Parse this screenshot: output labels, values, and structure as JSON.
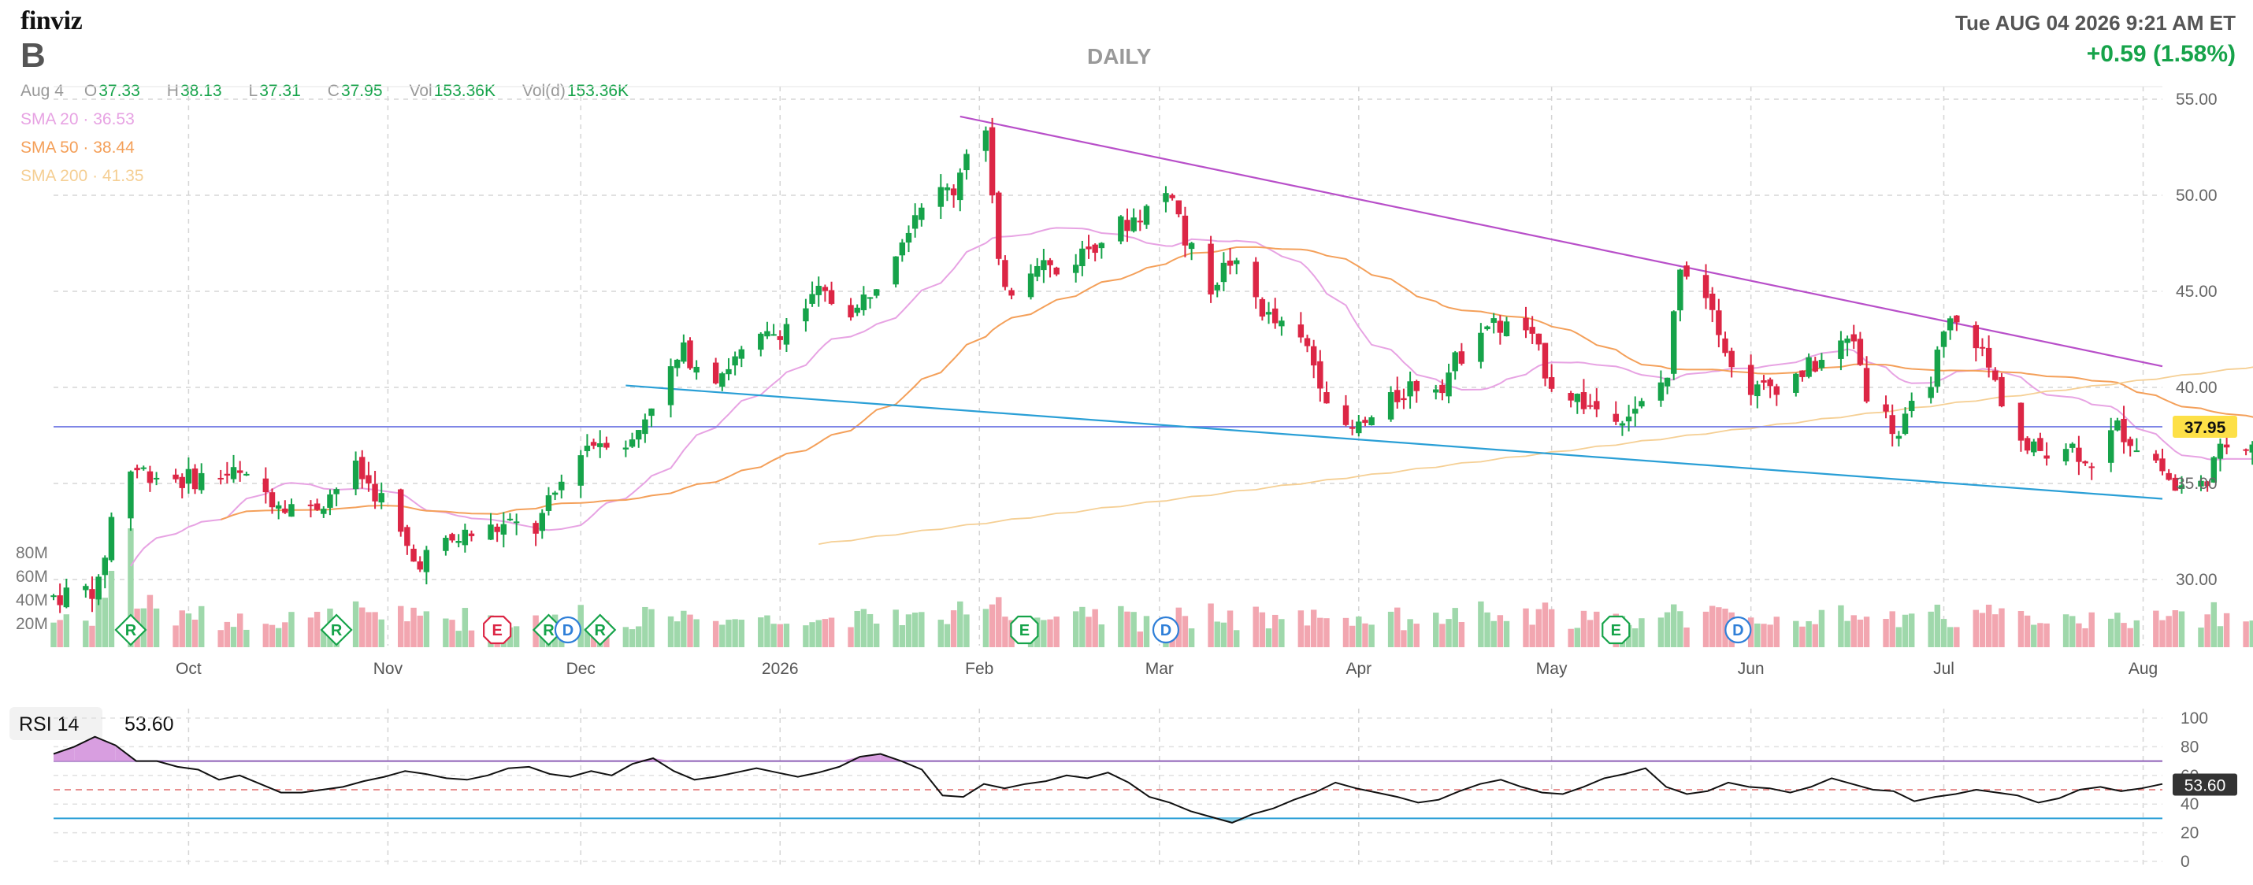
{
  "header": {
    "logo": "finviz",
    "ticker": "B",
    "timeframe": "DAILY",
    "datetime": "Tue AUG 04 2026 9:21 AM ET",
    "change": "+0.59 (1.58%)"
  },
  "ohlc": {
    "date": "Aug 4",
    "open_label": "O",
    "open": "37.33",
    "high_label": "H",
    "high": "38.13",
    "low_label": "L",
    "low": "37.31",
    "close_label": "C",
    "close": "37.95",
    "vol_label": "Vol",
    "vol": "153.36K",
    "vold_label": "Vol(d)",
    "vold": "153.36K"
  },
  "indicators": {
    "sma20": {
      "label": "SMA 20",
      "value": "36.53",
      "color": "#e7a3e3"
    },
    "sma50": {
      "label": "SMA 50",
      "value": "38.44",
      "color": "#f4a05a"
    },
    "sma200": {
      "label": "SMA 200",
      "value": "41.35",
      "color": "#f5cf94"
    }
  },
  "rsi": {
    "label": "RSI 14",
    "value": "53.60"
  },
  "colors": {
    "up": "#16a34a",
    "down": "#dc2645",
    "vol_up": "#9fd8ab",
    "vol_down": "#f2a6b0",
    "trend_upper": "#b84fc9",
    "trend_lower": "#2a9fd6",
    "hline": "#7f86e6",
    "price_tag": "#fde047"
  },
  "chart_data": [
    {
      "type": "candlestick",
      "title": "B DAILY",
      "x_range": [
        "2025-09-10",
        "2026-08-04"
      ],
      "ylim": [
        27,
        56
      ],
      "y_ticks": [
        "55.00",
        "50.00",
        "45.00",
        "40.00",
        "35.00",
        "30.00"
      ],
      "x_ticks": [
        "Oct",
        "Nov",
        "Dec",
        "2026",
        "Feb",
        "Mar",
        "Apr",
        "May",
        "Jun",
        "Jul",
        "Aug"
      ],
      "volume_ticks": [
        "80M",
        "60M",
        "40M",
        "20M"
      ],
      "last_price": "37.95",
      "horizontal_line": 37.95,
      "trendlines": [
        {
          "name": "upper",
          "from": [
            "2026-01-29",
            54.1
          ],
          "to": [
            "2026-08-04",
            41.1
          ]
        },
        {
          "name": "lower",
          "from": [
            "2025-12-08",
            40.1
          ],
          "to": [
            "2026-08-04",
            34.2
          ]
        }
      ],
      "anchors": [
        {
          "date": "2025-09-10",
          "close": 29.1
        },
        {
          "date": "2025-09-17",
          "close": 29.6
        },
        {
          "date": "2025-09-19",
          "close": 33.2
        },
        {
          "date": "2025-09-22",
          "close": 35.8
        },
        {
          "date": "2025-09-30",
          "close": 35.2
        },
        {
          "date": "2025-10-08",
          "close": 35.5
        },
        {
          "date": "2025-10-14",
          "close": 34.3
        },
        {
          "date": "2025-10-20",
          "close": 33.6
        },
        {
          "date": "2025-10-27",
          "close": 35.7
        },
        {
          "date": "2025-10-31",
          "close": 34.2
        },
        {
          "date": "2025-11-05",
          "close": 30.9
        },
        {
          "date": "2025-11-13",
          "close": 32.3
        },
        {
          "date": "2025-11-20",
          "close": 32.8
        },
        {
          "date": "2025-11-24",
          "close": 32.6
        },
        {
          "date": "2025-12-01",
          "close": 36.9
        },
        {
          "date": "2025-12-05",
          "close": 37.4
        },
        {
          "date": "2025-12-09",
          "close": 37.1
        },
        {
          "date": "2025-12-12",
          "close": 39.3
        },
        {
          "date": "2025-12-17",
          "close": 41.8
        },
        {
          "date": "2025-12-22",
          "close": 40.7
        },
        {
          "date": "2026-01-02",
          "close": 43.3
        },
        {
          "date": "2026-01-07",
          "close": 44.8
        },
        {
          "date": "2026-01-13",
          "close": 44.0
        },
        {
          "date": "2026-01-19",
          "close": 47.4
        },
        {
          "date": "2026-01-23",
          "close": 49.8
        },
        {
          "date": "2026-01-28",
          "close": 50.3
        },
        {
          "date": "2026-01-30",
          "close": 52.5
        },
        {
          "date": "2026-02-02",
          "close": 53.3
        },
        {
          "date": "2026-02-04",
          "close": 46.1
        },
        {
          "date": "2026-02-06",
          "close": 45.2
        },
        {
          "date": "2026-02-10",
          "close": 46.8
        },
        {
          "date": "2026-02-13",
          "close": 45.9
        },
        {
          "date": "2026-02-19",
          "close": 47.6
        },
        {
          "date": "2026-02-25",
          "close": 48.8
        },
        {
          "date": "2026-03-03",
          "close": 50.3
        },
        {
          "date": "2026-03-05",
          "close": 47.5
        },
        {
          "date": "2026-03-09",
          "close": 45.3
        },
        {
          "date": "2026-03-12",
          "close": 46.6
        },
        {
          "date": "2026-03-18",
          "close": 43.6
        },
        {
          "date": "2026-03-24",
          "close": 42.0
        },
        {
          "date": "2026-03-30",
          "close": 37.5
        },
        {
          "date": "2026-04-03",
          "close": 38.3
        },
        {
          "date": "2026-04-09",
          "close": 40.1
        },
        {
          "date": "2026-04-14",
          "close": 40.3
        },
        {
          "date": "2026-04-20",
          "close": 43.3
        },
        {
          "date": "2026-04-27",
          "close": 43.0
        },
        {
          "date": "2026-05-01",
          "close": 40.3
        },
        {
          "date": "2026-05-07",
          "close": 39.0
        },
        {
          "date": "2026-05-14",
          "close": 38.6
        },
        {
          "date": "2026-05-19",
          "close": 40.6
        },
        {
          "date": "2026-05-21",
          "close": 46.6
        },
        {
          "date": "2026-05-26",
          "close": 44.5
        },
        {
          "date": "2026-05-29",
          "close": 40.9
        },
        {
          "date": "2026-06-02",
          "close": 39.8
        },
        {
          "date": "2026-06-08",
          "close": 40.6
        },
        {
          "date": "2026-06-12",
          "close": 41.4
        },
        {
          "date": "2026-06-17",
          "close": 42.6
        },
        {
          "date": "2026-06-19",
          "close": 39.8
        },
        {
          "date": "2026-06-24",
          "close": 37.5
        },
        {
          "date": "2026-06-29",
          "close": 40.6
        },
        {
          "date": "2026-07-02",
          "close": 43.3
        },
        {
          "date": "2026-07-06",
          "close": 42.5
        },
        {
          "date": "2026-07-09",
          "close": 40.2
        },
        {
          "date": "2026-07-14",
          "close": 36.6
        },
        {
          "date": "2026-07-20",
          "close": 37.1
        },
        {
          "date": "2026-07-24",
          "close": 36.2
        },
        {
          "date": "2026-07-28",
          "close": 37.9
        },
        {
          "date": "2026-08-03",
          "close": 36.2
        },
        {
          "date": "2026-08-06",
          "close": 34.7
        },
        {
          "date": "2026-08-10",
          "close": 34.9
        },
        {
          "date": "2026-08-14",
          "close": 37.1
        },
        {
          "date": "2026-08-20",
          "close": 37.4
        },
        {
          "date": "2026-08-24",
          "close": 37.0
        },
        {
          "date": "2026-08-28",
          "close": 37.3
        }
      ],
      "events": [
        {
          "date": "2025-09-22",
          "type": "R"
        },
        {
          "date": "2025-10-24",
          "type": "R"
        },
        {
          "date": "2025-11-18",
          "type": "E"
        },
        {
          "date": "2025-11-26",
          "type": "R"
        },
        {
          "date": "2025-11-29",
          "type": "D"
        },
        {
          "date": "2025-12-04",
          "type": "R"
        },
        {
          "date": "2026-02-08",
          "type": "E"
        },
        {
          "date": "2026-03-02",
          "type": "D"
        },
        {
          "date": "2026-05-11",
          "type": "E"
        },
        {
          "date": "2026-05-30",
          "type": "D"
        }
      ]
    },
    {
      "type": "line",
      "title": "RSI 14",
      "ylim": [
        0,
        100
      ],
      "y_ticks": [
        "100",
        "80",
        "60",
        "40",
        "20",
        "0"
      ],
      "overbought": 70,
      "oversold": 30,
      "mid": 50,
      "last_value": "53.60",
      "series": [
        {
          "name": "RSI 14",
          "values": [
            75,
            80,
            87,
            81,
            70,
            70,
            66,
            64,
            57,
            60,
            54,
            48,
            48,
            50,
            52,
            56,
            59,
            63,
            61,
            58,
            57,
            60,
            65,
            66,
            61,
            59,
            63,
            60,
            68,
            72,
            63,
            57,
            59,
            62,
            65,
            62,
            59,
            62,
            66,
            73,
            75,
            70,
            64,
            46,
            45,
            54,
            51,
            54,
            56,
            60,
            58,
            62,
            55,
            45,
            41,
            35,
            31,
            27,
            33,
            37,
            43,
            48,
            55,
            51,
            48,
            45,
            41,
            43,
            49,
            54,
            57,
            52,
            48,
            47,
            52,
            58,
            61,
            65,
            52,
            47,
            49,
            55,
            52,
            51,
            48,
            52,
            58,
            54,
            50,
            49,
            42,
            45,
            47,
            50,
            48,
            46,
            41,
            44,
            50,
            52,
            49,
            51,
            54
          ]
        }
      ]
    }
  ]
}
